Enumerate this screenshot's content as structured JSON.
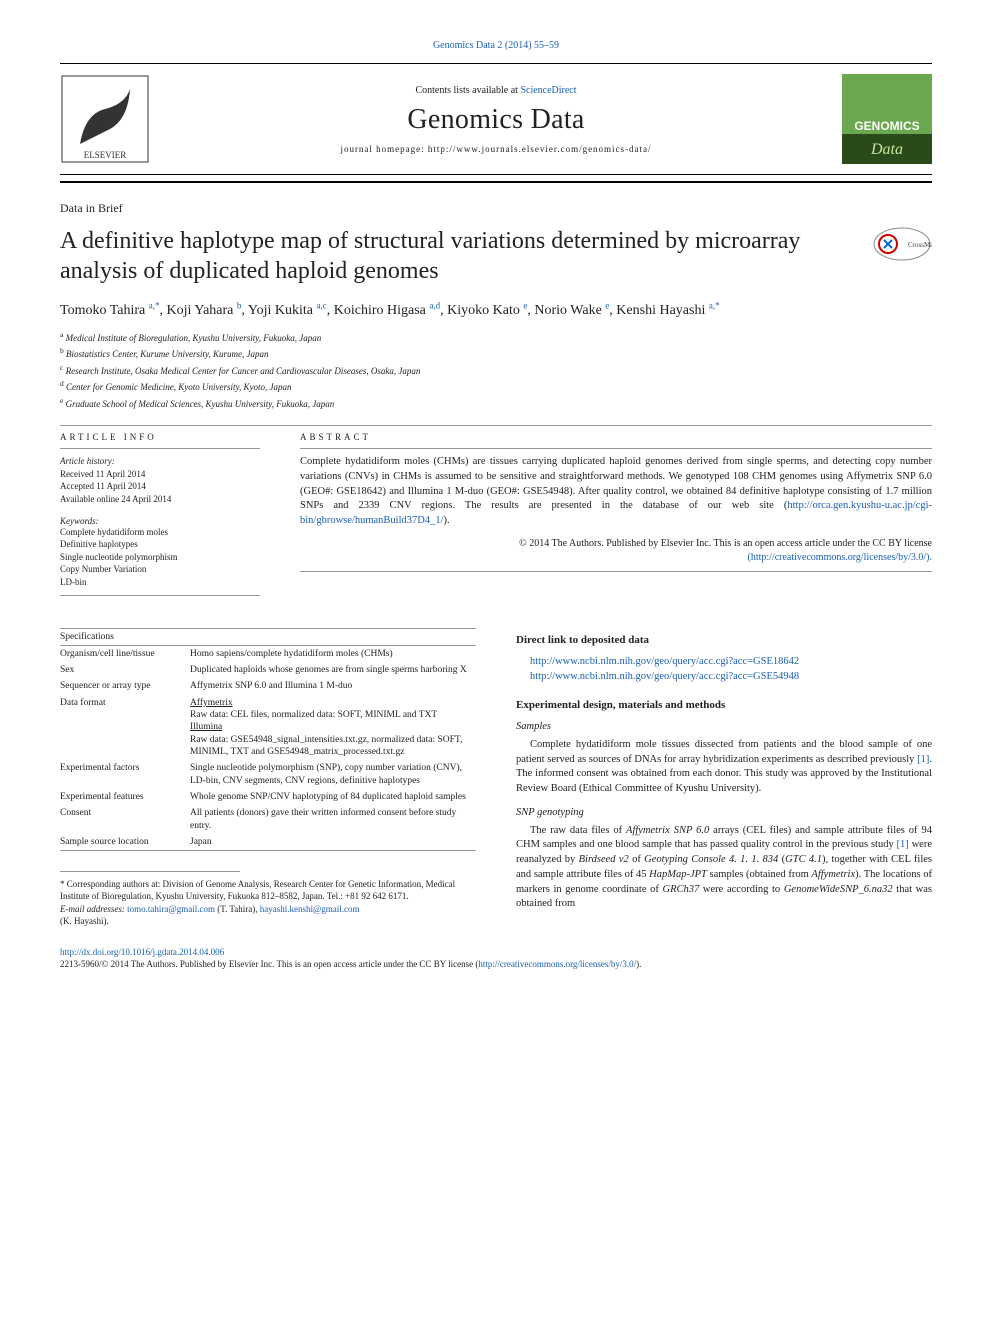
{
  "journal_ref": "Genomics Data 2 (2014) 55–59",
  "header": {
    "contents_prefix": "Contents lists available at ",
    "contents_link": "ScienceDirect",
    "journal_name": "Genomics Data",
    "homepage_prefix": "journal homepage: ",
    "homepage_url": "http://www.journals.elsevier.com/genomics-data/"
  },
  "article_type": "Data in Brief",
  "title": "A definitive haplotype map of structural variations determined by microarray analysis of duplicated haploid genomes",
  "crossmark_label": "CrossMark",
  "authors": [
    {
      "name": "Tomoko Tahira ",
      "aff": "a,",
      "star": "*"
    },
    {
      "name": ", Koji Yahara ",
      "aff": "b",
      "star": ""
    },
    {
      "name": ", Yoji Kukita ",
      "aff": "a,c",
      "star": ""
    },
    {
      "name": ", Koichiro Higasa ",
      "aff": "a,d",
      "star": ""
    },
    {
      "name": ", Kiyoko Kato ",
      "aff": "e",
      "star": ""
    },
    {
      "name": ", Norio Wake ",
      "aff": "e",
      "star": ""
    },
    {
      "name": ", Kenshi Hayashi ",
      "aff": "a,",
      "star": "*"
    }
  ],
  "affiliations": [
    {
      "sup": "a",
      "text": " Medical Institute of Bioregulation, Kyushu University, Fukuoka, Japan"
    },
    {
      "sup": "b",
      "text": " Biostatistics Center, Kurume University, Kurume, Japan"
    },
    {
      "sup": "c",
      "text": " Research Institute, Osaka Medical Center for Cancer and Cardiovascular Diseases, Osaka, Japan"
    },
    {
      "sup": "d",
      "text": " Center for Genomic Medicine, Kyoto University, Kyoto, Japan"
    },
    {
      "sup": "e",
      "text": " Graduate School of Medical Sciences, Kyushu University, Fukuoka, Japan"
    }
  ],
  "info": {
    "heading": "article info",
    "history_label": "Article history:",
    "received": "Received 11 April 2014",
    "accepted": "Accepted 11 April 2014",
    "online": "Available online 24 April 2014",
    "keywords_label": "Keywords:",
    "keywords": [
      "Complete hydatidiform moles",
      "Definitive haplotypes",
      "Single nucleotide polymorphism",
      "Copy Number Variation",
      "LD-bin"
    ]
  },
  "abstract": {
    "heading": "abstract",
    "text": "Complete hydatidiform moles (CHMs) are tissues carrying duplicated haploid genomes derived from single sperms, and detecting copy number variations (CNVs) in CHMs is assumed to be sensitive and straightforward methods. We genotyped 108 CHM genomes using Affymetrix SNP 6.0 (GEO#: GSE18642) and Illumina 1 M-duo (GEO#: GSE54948). After quality control, we obtained 84 definitive haplotype consisting of 1.7 million SNPs and 2339 CNV regions. The results are presented in the database of our web site (",
    "link": "http://orca.gen.kyushu-u.ac.jp/cgi-bin/gbrowse/humanBuild37D4_1/",
    "text_after": ").",
    "copyright": "© 2014 The Authors. Published by Elsevier Inc. This is an open access article under the CC BY license",
    "cc_link": "(http://creativecommons.org/licenses/by/3.0/)."
  },
  "specifications": {
    "caption": "Specifications",
    "rows": [
      {
        "k": "Organism/cell line/tissue",
        "v": "Homo sapiens/complete hydatidiform moles (CHMs)"
      },
      {
        "k": "Sex",
        "v": "Duplicated haploids whose genomes are from single sperms harboring X"
      },
      {
        "k": "Sequencer or array type",
        "v": "Affymetrix SNP 6.0 and Illumina 1 M-duo"
      },
      {
        "k": "Data format",
        "v_parts": [
          {
            "u": "Affymetrix"
          },
          {
            "t": "Raw data: CEL files, normalized data: SOFT, MINIML and TXT"
          },
          {
            "u": "Illumina"
          },
          {
            "t": "Raw data: GSE54948_signal_intensities.txt.gz, normalized data: SOFT, MINIML, TXT and GSE54948_matrix_processed.txt.gz"
          }
        ]
      },
      {
        "k": "Experimental factors",
        "v": "Single nucleotide polymorphism (SNP), copy number variation (CNV), LD-bin, CNV segments, CNV regions, definitive haplotypes"
      },
      {
        "k": "Experimental features",
        "v": "Whole genome SNP/CNV haplotyping of 84 duplicated haploid samples"
      },
      {
        "k": "Consent",
        "v": "All patients (donors) gave their written informed consent before study entry."
      },
      {
        "k": "Sample source location",
        "v": "Japan"
      }
    ]
  },
  "right_col": {
    "deposited_heading": "Direct link to deposited data",
    "links": [
      "http://www.ncbi.nlm.nih.gov/geo/query/acc.cgi?acc=GSE18642",
      "http://www.ncbi.nlm.nih.gov/geo/query/acc.cgi?acc=GSE54948"
    ],
    "design_heading": "Experimental design, materials and methods",
    "samples_heading": "Samples",
    "samples_text": "Complete hydatidiform mole tissues dissected from patients and the blood sample of one patient served as sources of DNAs for array hybridization experiments as described previously [1]. The informed consent was obtained from each donor. This study was approved by the Institutional Review Board (Ethical Committee of Kyushu University).",
    "snp_heading": "SNP genotyping",
    "snp_text": "The raw data files of Affymetrix SNP 6.0 arrays (CEL files) and sample attribute files of 94 CHM samples and one blood sample that has passed quality control in the previous study [1] were reanalyzed by Birdseed v2 of Geotyping Console 4. 1. 1. 834 (GTC 4.1), together with CEL files and sample attribute files of 45 HapMap-JPT samples (obtained from Affymetrix). The locations of markers in genome coordinate of GRCh37 were according to GenomeWideSNP_6.na32 that was obtained from"
  },
  "footnotes": {
    "corr_prefix": "* Corresponding authors at: Division of Genome Analysis, Research Center for Genetic Information, Medical Institute of Bioregulation, Kyushu University, Fukuoka 812–8582, Japan. Tel.: +81 92 642 6171.",
    "email_label": "E-mail addresses: ",
    "email1": "tomo.tahira@gmail.com",
    "email1_who": " (T. Tahira), ",
    "email2": "hayashi.kenshi@gmail.com",
    "email2_who": " (K. Hayashi)."
  },
  "footer": {
    "doi": "http://dx.doi.org/10.1016/j.gdata.2014.04.006",
    "copyright": "2213-5960/© 2014 The Authors. Published by Elsevier Inc. This is an open access article under the CC BY license (",
    "cc_link": "http://creativecommons.org/licenses/by/3.0/",
    "copyright_after": ")."
  },
  "colors": {
    "link": "#1a5fb4",
    "text": "#222222",
    "rule": "#999999",
    "genomics_green": "#6aa84f",
    "genomics_dark": "#2b4a1a",
    "elsevier_orange": "#c46a1f"
  }
}
